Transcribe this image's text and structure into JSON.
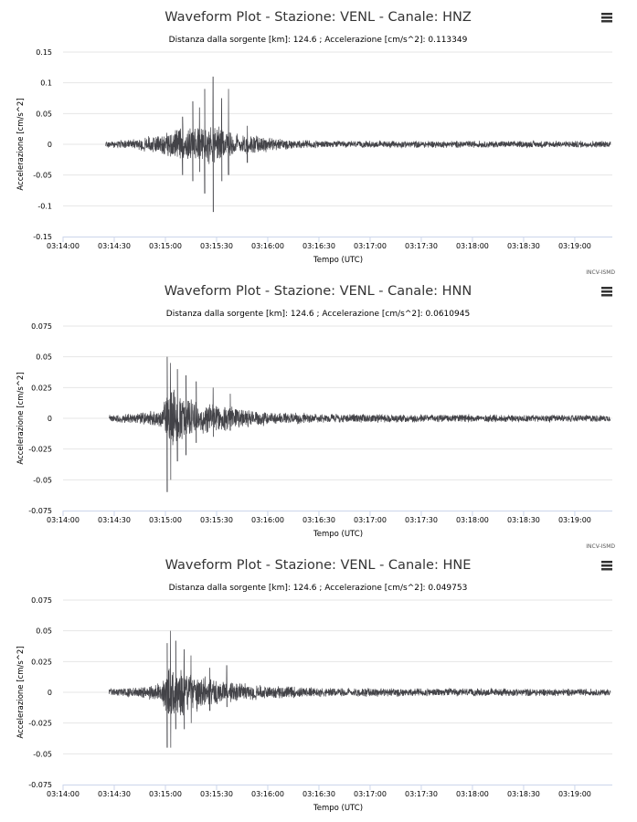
{
  "colors": {
    "trace": "#434348",
    "grid": "#e6e6e6",
    "axis": "#ccd6eb",
    "text": "#000000"
  },
  "chart_data": [
    {
      "type": "line",
      "title": "Waveform Plot - Stazione: VENL - Canale: HNZ",
      "subtitle": "Distanza dalla sorgente [km]: 124.6 ; Accelerazione [cm/s^2]: 0.113349",
      "xlabel": "Tempo (UTC)",
      "ylabel": "Accelerazione [cm/s^2]",
      "credit": "INCV-ISMD",
      "menu_icon": "hamburger-menu-icon",
      "xticks": [
        "03:14:00",
        "03:14:30",
        "03:15:00",
        "03:15:30",
        "03:16:00",
        "03:16:30",
        "03:17:00",
        "03:17:30",
        "03:18:00",
        "03:18:30",
        "03:19:00"
      ],
      "xlim": [
        "03:14:00",
        "03:19:22"
      ],
      "yticks": [
        "0.15",
        "0.1",
        "0.05",
        "0",
        "-0.05",
        "-0.1",
        "-0.15"
      ],
      "ylim": [
        -0.15,
        0.15
      ],
      "series_start": "03:14:25",
      "peak": 0.113349,
      "grid": true
    },
    {
      "type": "line",
      "title": "Waveform Plot - Stazione: VENL - Canale: HNN",
      "subtitle": "Distanza dalla sorgente [km]: 124.6 ; Accelerazione [cm/s^2]: 0.0610945",
      "xlabel": "Tempo (UTC)",
      "ylabel": "Accelerazione [cm/s^2]",
      "credit": "INCV-ISMD",
      "menu_icon": "hamburger-menu-icon",
      "xticks": [
        "03:14:00",
        "03:14:30",
        "03:15:00",
        "03:15:30",
        "03:16:00",
        "03:16:30",
        "03:17:00",
        "03:17:30",
        "03:18:00",
        "03:18:30",
        "03:19:00"
      ],
      "xlim": [
        "03:14:00",
        "03:19:22"
      ],
      "yticks": [
        "0.075",
        "0.05",
        "0.025",
        "0",
        "-0.025",
        "-0.05",
        "-0.075"
      ],
      "ylim": [
        -0.075,
        0.075
      ],
      "series_start": "03:14:27",
      "peak": 0.0610945,
      "grid": true
    },
    {
      "type": "line",
      "title": "Waveform Plot - Stazione: VENL - Canale: HNE",
      "subtitle": "Distanza dalla sorgente [km]: 124.6 ; Accelerazione [cm/s^2]: 0.049753",
      "xlabel": "Tempo (UTC)",
      "ylabel": "Accelerazione [cm/s^2]",
      "credit": "",
      "menu_icon": "hamburger-menu-icon",
      "xticks": [
        "03:14:00",
        "03:14:30",
        "03:15:00",
        "03:15:30",
        "03:16:00",
        "03:16:30",
        "03:17:00",
        "03:17:30",
        "03:18:00",
        "03:18:30",
        "03:19:00"
      ],
      "xlim": [
        "03:14:00",
        "03:19:22"
      ],
      "yticks": [
        "0.075",
        "0.05",
        "0.025",
        "0",
        "-0.025",
        "-0.05",
        "-0.075"
      ],
      "ylim": [
        -0.075,
        0.075
      ],
      "series_start": "03:14:27",
      "peak": 0.049753,
      "grid": true
    }
  ]
}
